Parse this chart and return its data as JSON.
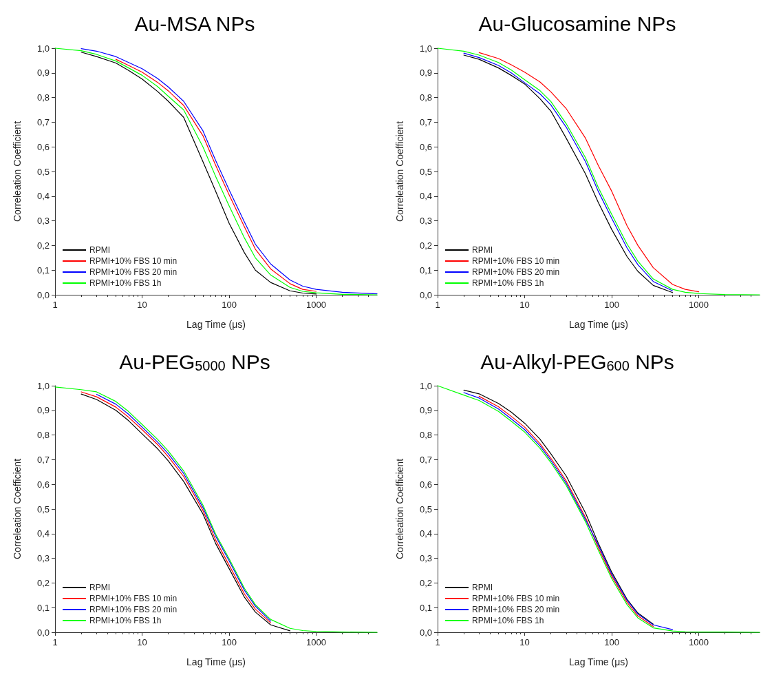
{
  "chart_data": [
    {
      "type": "line",
      "title": "Au-MSA NPs",
      "xlabel": "Lag Time (μs)",
      "ylabel": "Correleation Coefficient",
      "log": "x",
      "xlim": [
        1,
        5000
      ],
      "xticks": [
        1,
        10,
        100,
        1000
      ],
      "ylim": [
        0,
        1
      ],
      "yticks": [
        {
          "value": 0,
          "label": "0,0"
        },
        {
          "value": 0.1,
          "label": "0,1"
        },
        {
          "value": 0.2,
          "label": "0,2"
        },
        {
          "value": 0.3,
          "label": "0,3"
        },
        {
          "value": 0.4,
          "label": "0,4"
        },
        {
          "value": 0.5,
          "label": "0,5"
        },
        {
          "value": 0.6,
          "label": "0,6"
        },
        {
          "value": 0.7,
          "label": "0,7"
        },
        {
          "value": 0.8,
          "label": "0,8"
        },
        {
          "value": 0.9,
          "label": "0,9"
        },
        {
          "value": 1,
          "label": "1,0"
        }
      ],
      "grid": false,
      "legend": "bottom left",
      "marker": "none",
      "line_style": "solid",
      "x": [
        1,
        2,
        3,
        5,
        7,
        10,
        15,
        20,
        30,
        50,
        70,
        100,
        150,
        200,
        300,
        500,
        700,
        1000,
        2000,
        5000
      ],
      "series": [
        {
          "name": "RPMI",
          "color": "#000000",
          "values": [
            null,
            0.984,
            0.966,
            0.94,
            0.91,
            0.875,
            0.825,
            0.785,
            0.72,
            0.54,
            0.42,
            0.29,
            0.17,
            0.1,
            0.05,
            0.016,
            0.007,
            0.003,
            null,
            null
          ]
        },
        {
          "name": "RPMI+10% FBS 10 min",
          "color": "#ff0000",
          "values": [
            null,
            null,
            null,
            0.955,
            0.93,
            0.903,
            0.862,
            0.827,
            0.768,
            0.645,
            0.525,
            0.405,
            0.275,
            0.185,
            0.105,
            0.045,
            0.022,
            0.014,
            null,
            null
          ]
        },
        {
          "name": "RPMI+10% FBS 20 min",
          "color": "#0000ff",
          "values": [
            null,
            0.998,
            0.988,
            0.966,
            0.942,
            0.917,
            0.878,
            0.843,
            0.785,
            0.665,
            0.545,
            0.425,
            0.295,
            0.205,
            0.125,
            0.06,
            0.035,
            0.022,
            0.01,
            0.004
          ]
        },
        {
          "name": "RPMI+10% FBS 1h",
          "color": "#00ff00",
          "values": [
            1,
            0.99,
            0.975,
            0.948,
            0.92,
            0.89,
            0.845,
            0.805,
            0.75,
            0.6,
            0.48,
            0.36,
            0.23,
            0.15,
            0.08,
            0.03,
            0.014,
            0.008,
            0.002,
            0
          ]
        }
      ]
    },
    {
      "type": "line",
      "title": "Au-Glucosamine NPs",
      "xlabel": "Lag Time (μs)",
      "ylabel": "Correleation Coefficient",
      "log": "x",
      "xlim": [
        1,
        5000
      ],
      "xticks": [
        1,
        10,
        100,
        1000
      ],
      "ylim": [
        0,
        1
      ],
      "yticks": [
        {
          "value": 0,
          "label": "0,0"
        },
        {
          "value": 0.1,
          "label": "0,1"
        },
        {
          "value": 0.2,
          "label": "0,2"
        },
        {
          "value": 0.3,
          "label": "0,3"
        },
        {
          "value": 0.4,
          "label": "0,4"
        },
        {
          "value": 0.5,
          "label": "0,5"
        },
        {
          "value": 0.6,
          "label": "0,6"
        },
        {
          "value": 0.7,
          "label": "0,7"
        },
        {
          "value": 0.8,
          "label": "0,8"
        },
        {
          "value": 0.9,
          "label": "0,9"
        },
        {
          "value": 1,
          "label": "1,0"
        }
      ],
      "grid": false,
      "legend": "bottom left",
      "marker": "none",
      "line_style": "solid",
      "x": [
        1,
        2,
        3,
        5,
        7,
        10,
        15,
        20,
        30,
        50,
        70,
        100,
        150,
        200,
        300,
        500,
        700,
        1000,
        2000,
        5000
      ],
      "series": [
        {
          "name": "RPMI",
          "color": "#000000",
          "values": [
            null,
            0.972,
            0.955,
            0.92,
            0.89,
            0.855,
            0.795,
            0.745,
            0.635,
            0.49,
            0.375,
            0.265,
            0.155,
            0.095,
            0.038,
            0.009,
            null,
            null,
            null,
            null
          ]
        },
        {
          "name": "RPMI+10% FBS 10 min",
          "color": "#ff0000",
          "values": [
            null,
            null,
            0.982,
            0.958,
            0.933,
            0.903,
            0.863,
            0.823,
            0.755,
            0.635,
            0.525,
            0.42,
            0.28,
            0.2,
            0.11,
            0.042,
            0.022,
            0.012,
            null,
            null
          ]
        },
        {
          "name": "RPMI+10% FBS 20 min",
          "color": "#0000ff",
          "values": [
            null,
            0.98,
            0.962,
            0.93,
            0.9,
            0.86,
            0.815,
            0.77,
            0.68,
            0.54,
            0.42,
            0.31,
            0.19,
            0.122,
            0.054,
            0.016,
            null,
            null,
            null,
            null
          ]
        },
        {
          "name": "RPMI+10% FBS 1h",
          "color": "#00ff00",
          "values": [
            1,
            0.988,
            0.972,
            0.942,
            0.912,
            0.872,
            0.828,
            0.784,
            0.694,
            0.556,
            0.436,
            0.326,
            0.206,
            0.136,
            0.064,
            0.022,
            0.01,
            0.005,
            0.001,
            0
          ]
        }
      ]
    },
    {
      "type": "line",
      "title": "Au-PEG$_{5000}$ NPs",
      "xlabel": "Lag Time (μs)",
      "ylabel": "Correleation Coefficient",
      "log": "x",
      "xlim": [
        1,
        5000
      ],
      "xticks": [
        1,
        10,
        100,
        1000
      ],
      "ylim": [
        0,
        1
      ],
      "yticks": [
        {
          "value": 0,
          "label": "0,0"
        },
        {
          "value": 0.1,
          "label": "0,1"
        },
        {
          "value": 0.2,
          "label": "0,2"
        },
        {
          "value": 0.3,
          "label": "0,3"
        },
        {
          "value": 0.4,
          "label": "0,4"
        },
        {
          "value": 0.5,
          "label": "0,5"
        },
        {
          "value": 0.6,
          "label": "0,6"
        },
        {
          "value": 0.7,
          "label": "0,7"
        },
        {
          "value": 0.8,
          "label": "0,8"
        },
        {
          "value": 0.9,
          "label": "0,9"
        },
        {
          "value": 1,
          "label": "1,0"
        }
      ],
      "grid": false,
      "legend": "bottom left",
      "marker": "none",
      "line_style": "solid",
      "x": [
        1,
        2,
        3,
        5,
        7,
        10,
        15,
        20,
        30,
        50,
        70,
        100,
        150,
        200,
        300,
        500,
        700,
        1000,
        2000,
        5000
      ],
      "series": [
        {
          "name": "RPMI",
          "color": "#000000",
          "values": [
            null,
            0.966,
            0.944,
            0.9,
            0.858,
            0.805,
            0.745,
            0.695,
            0.612,
            0.48,
            0.36,
            0.258,
            0.142,
            0.082,
            0.03,
            0.006,
            null,
            null,
            null,
            null
          ]
        },
        {
          "name": "RPMI+10% FBS 10 min",
          "color": "#ff0000",
          "values": [
            null,
            0.975,
            0.955,
            0.913,
            0.872,
            0.822,
            0.762,
            0.712,
            0.632,
            0.494,
            0.374,
            0.272,
            0.155,
            0.094,
            0.038,
            null,
            null,
            null,
            null,
            null
          ]
        },
        {
          "name": "RPMI+10% FBS 20 min",
          "color": "#0000ff",
          "values": [
            null,
            null,
            0.965,
            0.925,
            0.884,
            0.832,
            0.772,
            0.724,
            0.644,
            0.506,
            0.39,
            0.29,
            0.17,
            0.106,
            0.045,
            null,
            null,
            null,
            null,
            null
          ]
        },
        {
          "name": "RPMI+10% FBS 1h",
          "color": "#00ff00",
          "values": [
            0.995,
            0.984,
            0.975,
            0.936,
            0.895,
            0.843,
            0.783,
            0.735,
            0.655,
            0.516,
            0.398,
            0.298,
            0.178,
            0.112,
            0.052,
            0.016,
            0.007,
            0.003,
            0.001,
            0
          ]
        }
      ]
    },
    {
      "type": "line",
      "title": "Au-Alkyl-PEG$_{600}$ NPs",
      "xlabel": "Lag Time (μs)",
      "ylabel": "Correleation Coefficient",
      "log": "x",
      "xlim": [
        1,
        5000
      ],
      "xticks": [
        1,
        10,
        100,
        1000
      ],
      "ylim": [
        0,
        1
      ],
      "yticks": [
        {
          "value": 0,
          "label": "0,0"
        },
        {
          "value": 0.1,
          "label": "0,1"
        },
        {
          "value": 0.2,
          "label": "0,2"
        },
        {
          "value": 0.3,
          "label": "0,3"
        },
        {
          "value": 0.4,
          "label": "0,4"
        },
        {
          "value": 0.5,
          "label": "0,5"
        },
        {
          "value": 0.6,
          "label": "0,6"
        },
        {
          "value": 0.7,
          "label": "0,7"
        },
        {
          "value": 0.8,
          "label": "0,8"
        },
        {
          "value": 0.9,
          "label": "0,9"
        },
        {
          "value": 1,
          "label": "1,0"
        }
      ],
      "grid": false,
      "legend": "bottom left",
      "marker": "none",
      "line_style": "solid",
      "x": [
        1,
        2,
        3,
        5,
        7,
        10,
        15,
        20,
        30,
        50,
        70,
        100,
        150,
        200,
        300,
        500,
        700,
        1000,
        2000,
        5000
      ],
      "series": [
        {
          "name": "RPMI",
          "color": "#000000",
          "values": [
            null,
            0.982,
            0.967,
            0.928,
            0.893,
            0.848,
            0.783,
            0.724,
            0.634,
            0.484,
            0.362,
            0.244,
            0.134,
            0.078,
            0.033,
            null,
            null,
            null,
            null,
            null
          ]
        },
        {
          "name": "RPMI+10% FBS 10 min",
          "color": "#ff0000",
          "values": [
            null,
            null,
            0.957,
            0.915,
            0.876,
            0.832,
            0.765,
            0.706,
            0.614,
            0.466,
            0.344,
            0.228,
            0.122,
            0.066,
            0.024,
            null,
            null,
            null,
            null,
            null
          ]
        },
        {
          "name": "RPMI+10% FBS 20 min",
          "color": "#0000ff",
          "values": [
            null,
            0.972,
            0.95,
            0.906,
            0.866,
            0.822,
            0.756,
            0.697,
            0.605,
            0.457,
            0.354,
            0.236,
            0.13,
            0.074,
            0.03,
            0.011,
            null,
            null,
            null,
            null
          ]
        },
        {
          "name": "RPMI+10% FBS 1h",
          "color": "#00ff00",
          "values": [
            1,
            0.962,
            0.94,
            0.896,
            0.856,
            0.812,
            0.746,
            0.688,
            0.596,
            0.448,
            0.334,
            0.218,
            0.112,
            0.058,
            0.018,
            0.005,
            0.002,
            0.001,
            0.001,
            0
          ]
        }
      ]
    }
  ]
}
